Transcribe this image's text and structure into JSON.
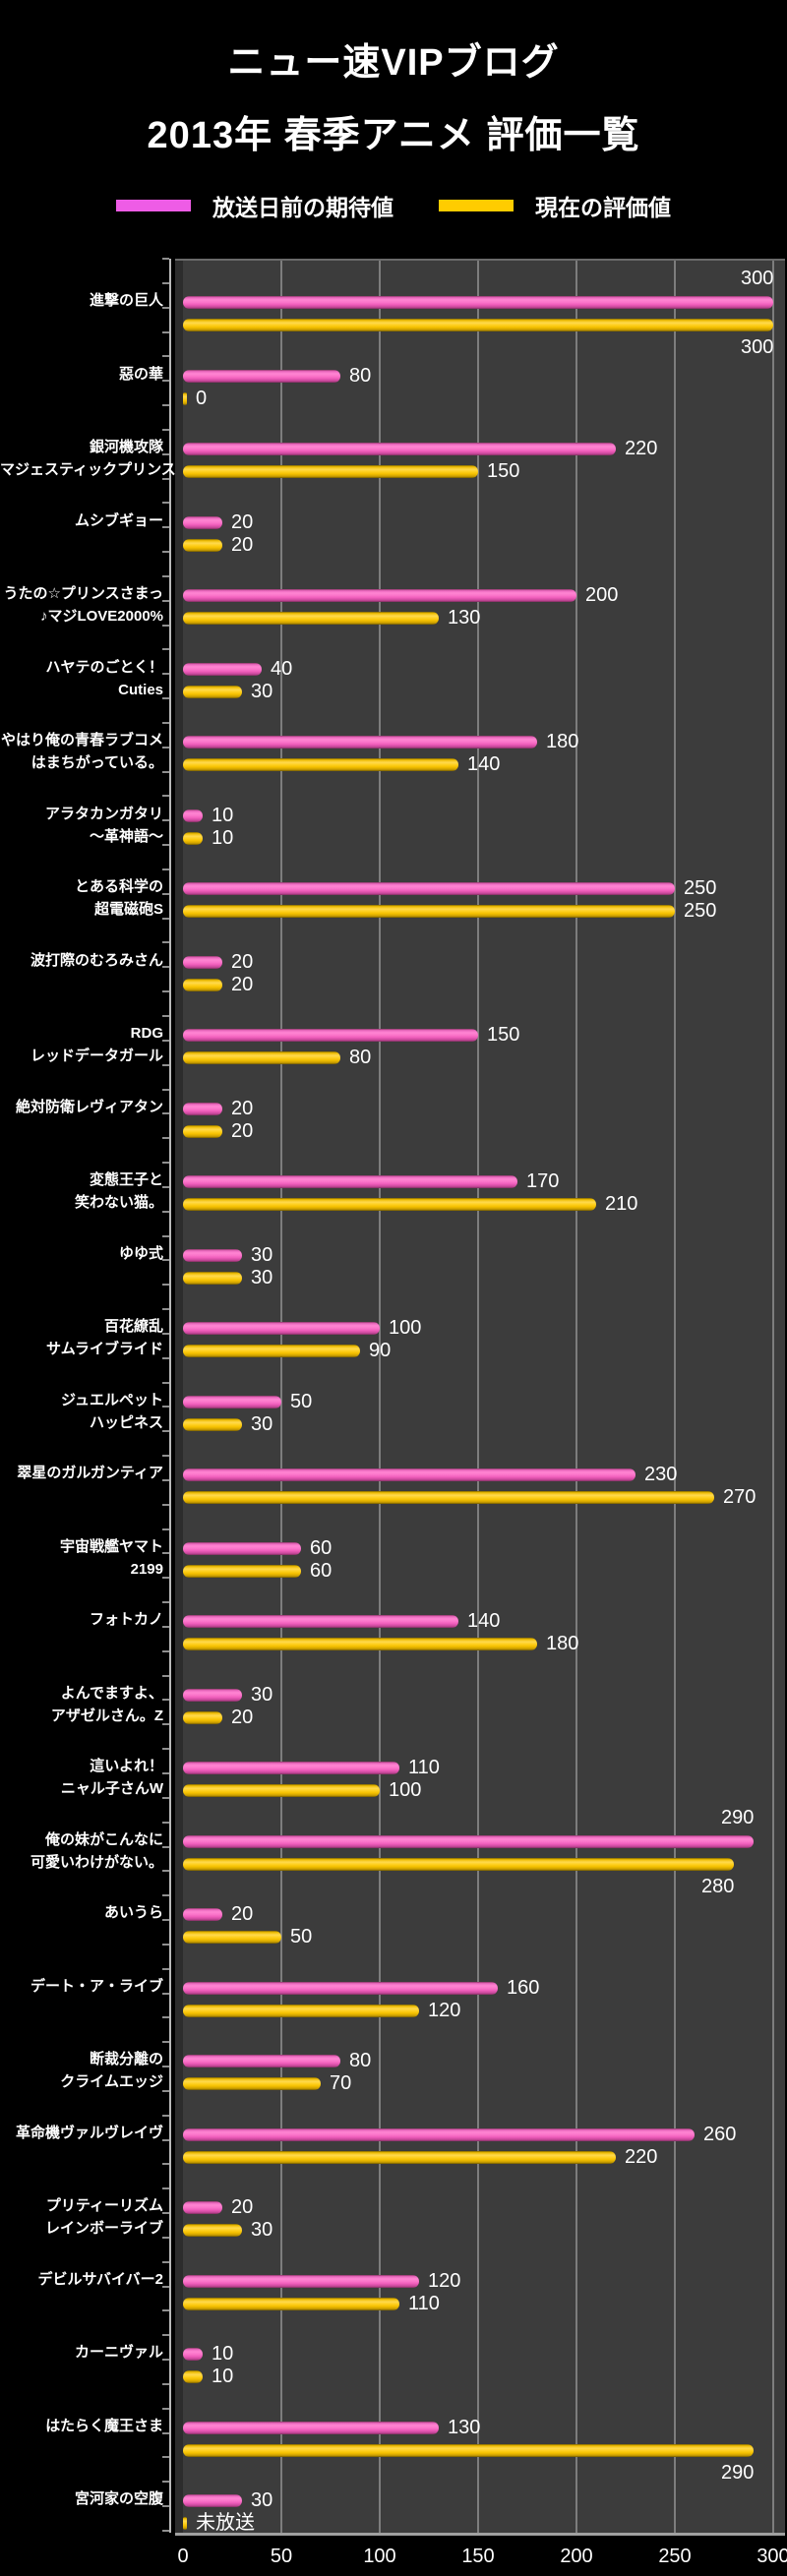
{
  "page": {
    "title_line1": "ニュー速VIPブログ",
    "title_line2": "2013年 春季アニメ 評価一覧"
  },
  "legend": {
    "items": [
      {
        "label": "放送日前の期待値",
        "color": "#ee5ce6"
      },
      {
        "label": "現在の評価値",
        "color": "#ffcc00"
      }
    ]
  },
  "colors": {
    "background": "#000000",
    "plot_background": "#3c3c3c",
    "gridline": "#7d7d7d",
    "bar_expectation": "#f46cc6",
    "bar_current": "#ffcc00",
    "text": "#ffffff"
  },
  "chart_data": {
    "type": "bar",
    "orientation": "horizontal",
    "title": "2013年 春季アニメ 評価一覧",
    "xlabel": "",
    "ylabel": "",
    "xlim": [
      0,
      300
    ],
    "x_ticks": [
      0,
      50,
      100,
      150,
      200,
      250,
      300
    ],
    "grid": true,
    "legend_position": "top",
    "series_names": [
      "放送日前の期待値",
      "現在の評価値"
    ],
    "categories": [
      {
        "name": [
          "進撃の巨人"
        ],
        "values": [
          300,
          300
        ],
        "labels": [
          "300",
          "300"
        ],
        "pos": [
          "above",
          "below"
        ]
      },
      {
        "name": [
          "惡の華"
        ],
        "values": [
          80,
          0
        ],
        "labels": [
          "80",
          "0"
        ]
      },
      {
        "name": [
          "銀河機攻隊",
          "マジェスティックプリンス"
        ],
        "values": [
          220,
          150
        ],
        "labels": [
          "220",
          "150"
        ]
      },
      {
        "name": [
          "ムシブギョー"
        ],
        "values": [
          20,
          20
        ],
        "labels": [
          "20",
          "20"
        ]
      },
      {
        "name": [
          "うたの☆プリンスさまっ",
          "♪マジLOVE2000%"
        ],
        "values": [
          200,
          130
        ],
        "labels": [
          "200",
          "130"
        ]
      },
      {
        "name": [
          "ハヤテのごとく！",
          "Cuties"
        ],
        "values": [
          40,
          30
        ],
        "labels": [
          "40",
          "30"
        ]
      },
      {
        "name": [
          "やはり俺の青春ラブコメ",
          "はまちがっている。"
        ],
        "values": [
          180,
          140
        ],
        "labels": [
          "180",
          "140"
        ]
      },
      {
        "name": [
          "アラタカンガタリ",
          "～革神語～"
        ],
        "values": [
          10,
          10
        ],
        "labels": [
          "10",
          "10"
        ]
      },
      {
        "name": [
          "とある科学の",
          "超電磁砲S"
        ],
        "values": [
          250,
          250
        ],
        "labels": [
          "250",
          "250"
        ]
      },
      {
        "name": [
          "波打際のむろみさん"
        ],
        "values": [
          20,
          20
        ],
        "labels": [
          "20",
          "20"
        ]
      },
      {
        "name": [
          "RDG",
          "レッドデータガール"
        ],
        "values": [
          150,
          80
        ],
        "labels": [
          "150",
          "80"
        ]
      },
      {
        "name": [
          "絶対防衛レヴィアタン"
        ],
        "values": [
          20,
          20
        ],
        "labels": [
          "20",
          "20"
        ]
      },
      {
        "name": [
          "変態王子と",
          "笑わない猫。"
        ],
        "values": [
          170,
          210
        ],
        "labels": [
          "170",
          "210"
        ]
      },
      {
        "name": [
          "ゆゆ式"
        ],
        "values": [
          30,
          30
        ],
        "labels": [
          "30",
          "30"
        ]
      },
      {
        "name": [
          "百花繚乱",
          "サムライブライド"
        ],
        "values": [
          100,
          90
        ],
        "labels": [
          "100",
          "90"
        ]
      },
      {
        "name": [
          "ジュエルペット",
          "ハッピネス"
        ],
        "values": [
          50,
          30
        ],
        "labels": [
          "50",
          "30"
        ]
      },
      {
        "name": [
          "翠星のガルガンティア"
        ],
        "values": [
          230,
          270
        ],
        "labels": [
          "230",
          "270"
        ]
      },
      {
        "name": [
          "宇宙戦艦ヤマト",
          "2199"
        ],
        "values": [
          60,
          60
        ],
        "labels": [
          "60",
          "60"
        ]
      },
      {
        "name": [
          "フォトカノ"
        ],
        "values": [
          140,
          180
        ],
        "labels": [
          "140",
          "180"
        ]
      },
      {
        "name": [
          "よんでますよ、",
          "アザゼルさん。Z"
        ],
        "values": [
          30,
          20
        ],
        "labels": [
          "30",
          "20"
        ]
      },
      {
        "name": [
          "這いよれ！",
          "ニャル子さんW"
        ],
        "values": [
          110,
          100
        ],
        "labels": [
          "110",
          "100"
        ]
      },
      {
        "name": [
          "俺の妹がこんなに",
          "可愛いわけがない。"
        ],
        "values": [
          290,
          280
        ],
        "labels": [
          "290",
          "280"
        ],
        "pos": [
          "above",
          "below"
        ]
      },
      {
        "name": [
          "あいうら"
        ],
        "values": [
          20,
          50
        ],
        "labels": [
          "20",
          "50"
        ]
      },
      {
        "name": [
          "デート・ア・ライブ"
        ],
        "values": [
          160,
          120
        ],
        "labels": [
          "160",
          "120"
        ]
      },
      {
        "name": [
          "断裁分離の",
          "クライムエッジ"
        ],
        "values": [
          80,
          70
        ],
        "labels": [
          "80",
          "70"
        ]
      },
      {
        "name": [
          "革命機ヴァルヴレイヴ"
        ],
        "values": [
          260,
          220
        ],
        "labels": [
          "260",
          "220"
        ]
      },
      {
        "name": [
          "プリティーリズム",
          "レインボーライブ"
        ],
        "values": [
          20,
          30
        ],
        "labels": [
          "20",
          "30"
        ]
      },
      {
        "name": [
          "デビルサバイバー2"
        ],
        "values": [
          120,
          110
        ],
        "labels": [
          "120",
          "110"
        ]
      },
      {
        "name": [
          "カーニヴァル"
        ],
        "values": [
          10,
          10
        ],
        "labels": [
          "10",
          "10"
        ]
      },
      {
        "name": [
          "はたらく魔王さま"
        ],
        "values": [
          130,
          290
        ],
        "labels": [
          "130",
          "290"
        ],
        "pos": [
          "right",
          "below"
        ]
      },
      {
        "name": [
          "宮河家の空腹"
        ],
        "values": [
          30,
          0
        ],
        "labels": [
          "30",
          "未放送"
        ]
      }
    ]
  }
}
